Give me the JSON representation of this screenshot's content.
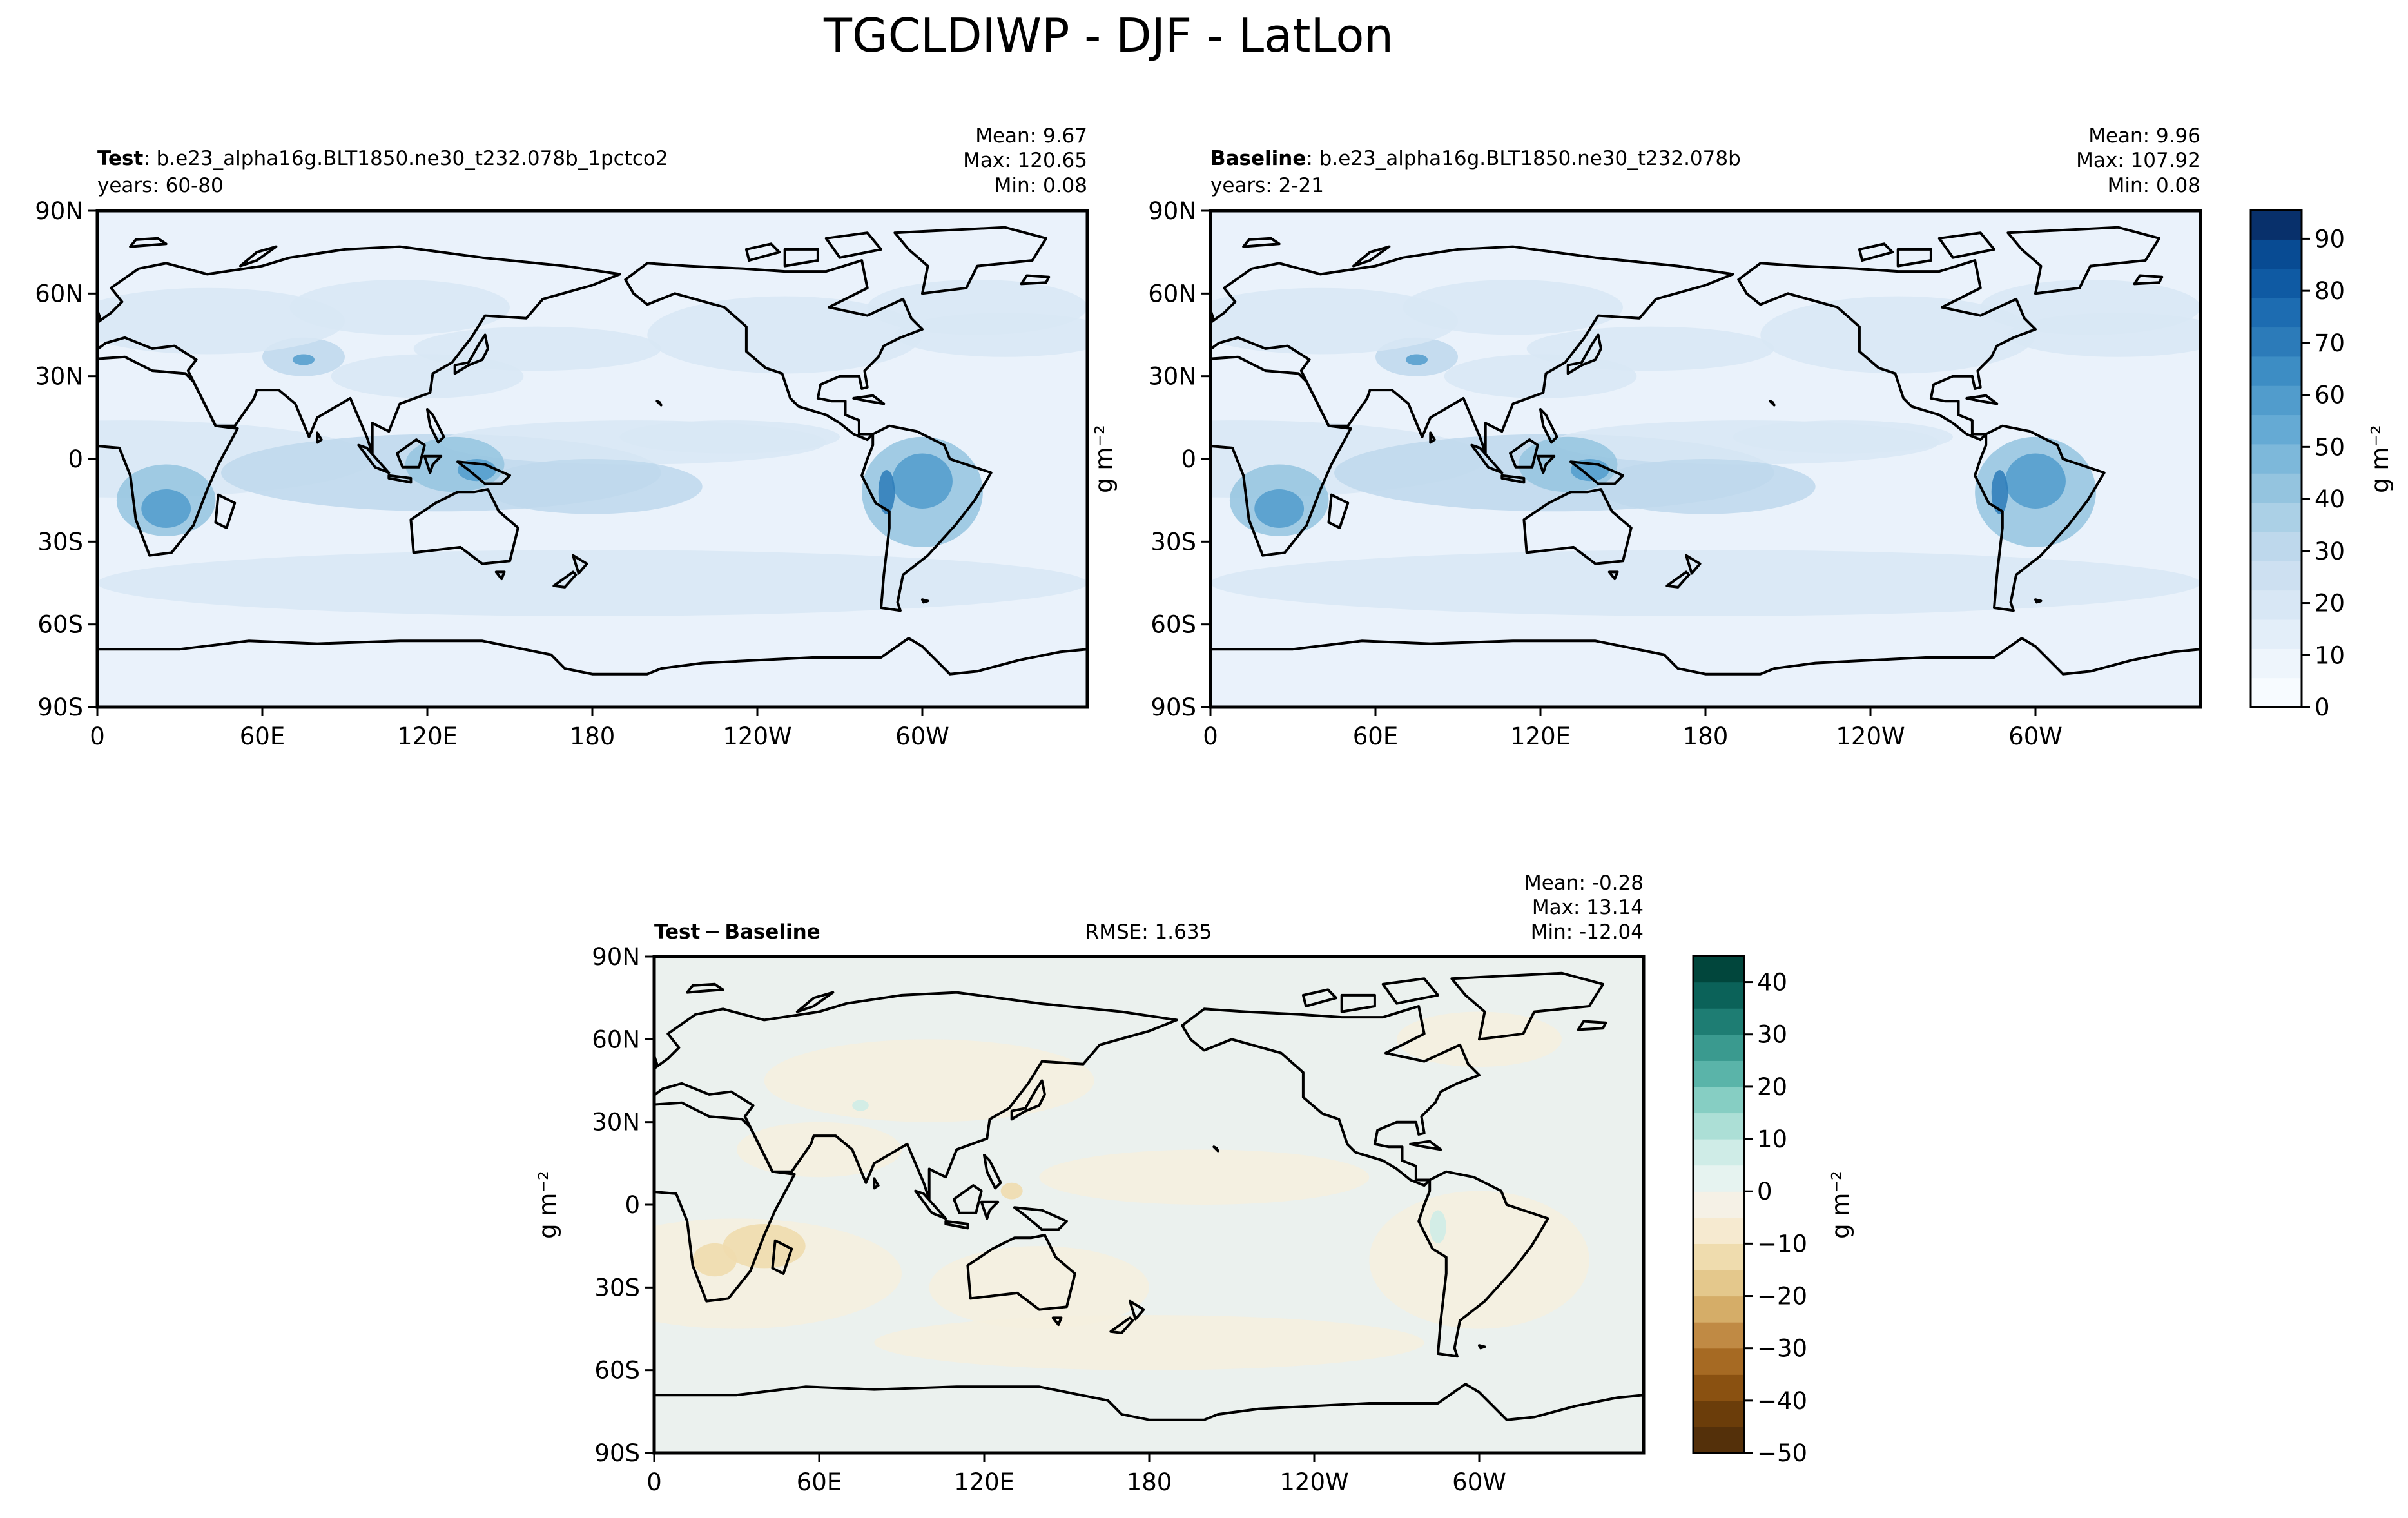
{
  "figure": {
    "title": "TGCLDIWP - DJF - LatLon"
  },
  "panels": [
    {
      "id": "test",
      "label_bold": "Test",
      "label_text": ": b.e23_alpha16g.BLT1850.ne30_t232.078b_1pctco2",
      "years": "years: 60-80",
      "mean": "Mean:  9.67",
      "max": "Max: 120.65",
      "min": "Min:  0.08"
    },
    {
      "id": "baseline",
      "label_bold": "Baseline",
      "label_text": ": b.e23_alpha16g.BLT1850.ne30_t232.078b",
      "years": "years: 2-21",
      "mean": "Mean:  9.96",
      "max": "Max: 107.92",
      "min": "Min:  0.08"
    },
    {
      "id": "diff",
      "label_bold": "Test",
      "label_op": "−",
      "label_bold2": "Baseline",
      "rmse": "RMSE: 1.635",
      "mean": "Mean: -0.28",
      "max": "Max: 13.14",
      "min": "Min: -12.04"
    }
  ],
  "axes": {
    "lat_ticks": [
      "90N",
      "60N",
      "30N",
      "0",
      "30S",
      "60S",
      "90S"
    ],
    "lon_ticks": [
      "0",
      "60E",
      "120E",
      "180",
      "120W",
      "60W"
    ]
  },
  "colorbars": {
    "main": {
      "unit": "g m⁻²",
      "ticks": [
        "0",
        "10",
        "20",
        "30",
        "40",
        "50",
        "60",
        "70",
        "80",
        "90"
      ],
      "colors": [
        "#f7fbff",
        "#eef5fc",
        "#e3eef9",
        "#d8e7f5",
        "#cde0f1",
        "#bed8ec",
        "#abd0e6",
        "#94c4df",
        "#7db8da",
        "#65aad4",
        "#519ccc",
        "#3d8dc4",
        "#2c7bb9",
        "#1d6cb1",
        "#0f5aa3",
        "#084b93",
        "#08306b"
      ]
    },
    "diff": {
      "unit": "g m⁻²",
      "ticks": [
        "40",
        "30",
        "20",
        "10",
        "0",
        "−10",
        "−20",
        "−30",
        "−40",
        "−50"
      ],
      "colors": [
        "#01463c",
        "#0b6259",
        "#1e7d73",
        "#3a9a8f",
        "#5ab4a9",
        "#86cec3",
        "#acdfd6",
        "#cfece7",
        "#e6f3f0",
        "#f5f1e6",
        "#f6ead0",
        "#efdcae",
        "#e4c88c",
        "#d5ad68",
        "#c08a44",
        "#a66a23",
        "#8a5111",
        "#6b3d0a",
        "#54300a"
      ]
    }
  },
  "map": {
    "land_palette_main": [
      "#d8e7f5",
      "#bed8ec",
      "#94c4df",
      "#519ccc",
      "#2c7bb9"
    ],
    "ocean_main": "#eaf2fb",
    "ocean_diff": "#ebf1ee",
    "land_diff": "#f5efdf"
  }
}
